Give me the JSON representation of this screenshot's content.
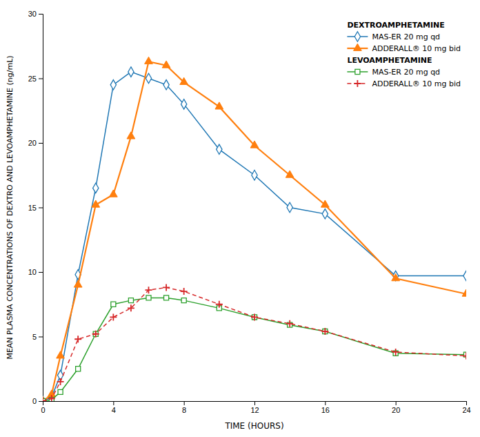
{
  "chart_data": {
    "type": "line",
    "xlabel": "TIME (HOURS)",
    "ylabel": "MEAN PLASMA CONCENTRATIONS OF DEXTRO AND LEVOAMPHETAMINE (ng/mL)",
    "x": [
      0,
      0.5,
      1,
      2,
      3,
      4,
      5,
      6,
      7,
      8,
      10,
      12,
      14,
      16,
      20,
      24
    ],
    "xlim": [
      0,
      24
    ],
    "ylim": [
      0,
      30
    ],
    "xticks": [
      0,
      4,
      8,
      12,
      16,
      20,
      24
    ],
    "yticks": [
      0,
      5,
      10,
      15,
      20,
      25,
      30
    ],
    "grid": false,
    "legend": "upper right",
    "series": [
      {
        "name": "MAS-ER 20 mg qd",
        "group": "DEXTROAMPHETAMINE",
        "marker": "diamond",
        "line_style": "solid",
        "values": [
          0,
          0.3,
          2.0,
          9.8,
          16.5,
          24.5,
          25.5,
          25.0,
          24.5,
          23.0,
          19.5,
          17.5,
          15.0,
          14.5,
          9.7,
          9.7
        ]
      },
      {
        "name": "ADDERALL® 10 mg bid",
        "group": "DEXTROAMPHETAMINE",
        "marker": "triangle",
        "line_style": "solid",
        "values": [
          0,
          0.5,
          3.5,
          9.0,
          15.2,
          16.0,
          20.5,
          26.3,
          26.0,
          24.7,
          22.8,
          19.8,
          17.5,
          15.2,
          9.5,
          8.3
        ]
      },
      {
        "name": "MAS-ER 20 mg qd",
        "group": "LEVOAMPHETAMINE",
        "marker": "square",
        "line_style": "solid",
        "values": [
          0,
          0.1,
          0.7,
          2.5,
          5.2,
          7.5,
          7.8,
          8.0,
          8.0,
          7.8,
          7.2,
          6.5,
          5.9,
          5.4,
          3.7,
          3.6
        ]
      },
      {
        "name": "ADDERALL® 10 mg bid",
        "group": "LEVOAMPHETAMINE",
        "marker": "plus",
        "line_style": "dashed",
        "values": [
          0,
          0.2,
          1.5,
          4.8,
          5.2,
          6.5,
          7.2,
          8.6,
          8.8,
          8.5,
          7.5,
          6.5,
          6.0,
          5.4,
          3.8,
          3.5
        ]
      }
    ]
  }
}
